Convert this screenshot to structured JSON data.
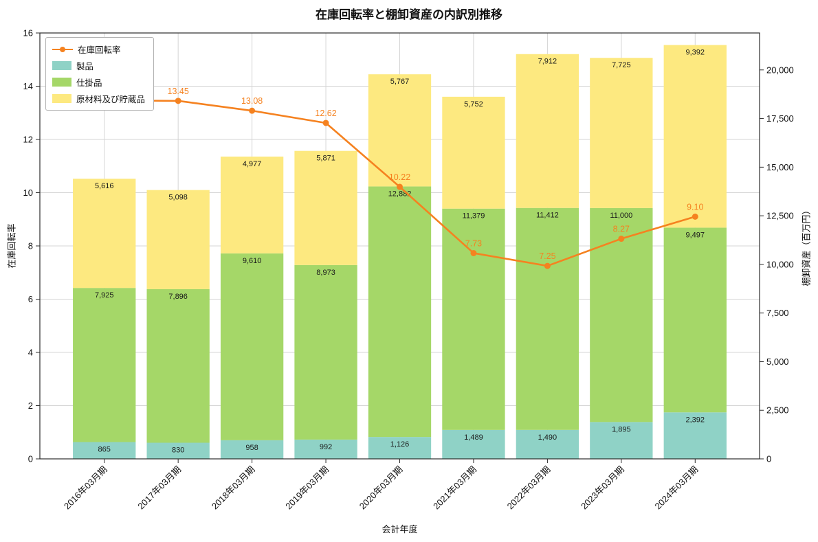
{
  "chart_data": {
    "type": "bar",
    "stacked": true,
    "combo_line": true,
    "title": "在庫回転率と棚卸資産の内訳別推移",
    "xlabel": "会計年度",
    "ylabel_left": "在庫回転率",
    "ylabel_right": "棚卸資産（百万円）",
    "categories": [
      "2016年03月期",
      "2017年03月期",
      "2018年03月期",
      "2019年03月期",
      "2020年03月期",
      "2021年03月期",
      "2022年03月期",
      "2023年03月期",
      "2024年03月期"
    ],
    "bar_series": [
      {
        "name": "製品",
        "color": "#8fd2c6",
        "values": [
          865,
          830,
          958,
          992,
          1126,
          1489,
          1490,
          1895,
          2392
        ]
      },
      {
        "name": "仕掛品",
        "color": "#a5d768",
        "values": [
          7925,
          7896,
          9610,
          8973,
          12882,
          11379,
          11412,
          11000,
          9497
        ]
      },
      {
        "name": "原材料及び貯蔵品",
        "color": "#fde980",
        "values": [
          5616,
          5098,
          4977,
          5871,
          5767,
          5752,
          7912,
          7725,
          9392
        ]
      }
    ],
    "line_series": {
      "name": "在庫回転率",
      "color": "#f58220",
      "values": [
        13.47,
        13.45,
        13.08,
        12.62,
        10.22,
        7.73,
        7.25,
        8.27,
        9.1
      ],
      "labels": [
        null,
        "13.45",
        "13.08",
        "12.62",
        "10.22",
        "7.73",
        "7.25",
        "8.27",
        "9.10"
      ]
    },
    "ylim_left": [
      0,
      16
    ],
    "yticks_left": [
      0,
      2,
      4,
      6,
      8,
      10,
      12,
      14,
      16
    ],
    "ylim_right": [
      0,
      21900
    ],
    "yticks_right": [
      0,
      2500,
      5000,
      7500,
      10000,
      12500,
      15000,
      17500,
      20000
    ],
    "grid": true,
    "legend_position": "upper-left"
  }
}
